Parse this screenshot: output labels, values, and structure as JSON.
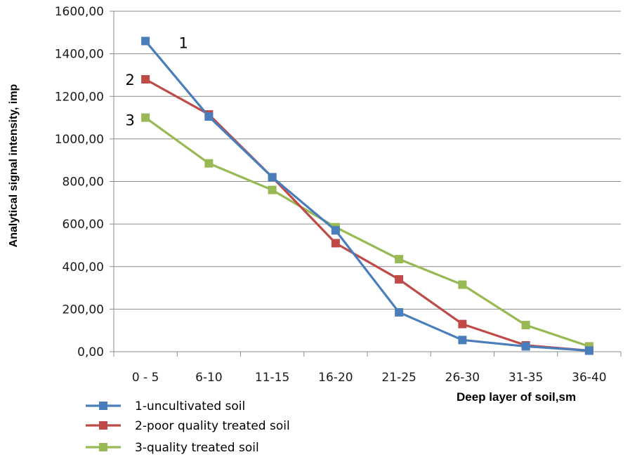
{
  "chart_data": {
    "type": "line",
    "title": "",
    "xlabel": "Deep layer of soil,sm",
    "ylabel": "Analytical signal intensity, imp",
    "categories": [
      "0 - 5",
      "6-10",
      "11-15",
      "16-20",
      "21-25",
      "26-30",
      "31-35",
      "36-40"
    ],
    "ylim": [
      0,
      1600
    ],
    "yticks": [
      "0,00",
      "200,00",
      "400,00",
      "600,00",
      "800,00",
      "1000,00",
      "1200,00",
      "1400,00",
      "1600,00"
    ],
    "grid": true,
    "legend_position": "bottom-left",
    "series": [
      {
        "name": "1-uncultivated soil",
        "color": "#4a7ebb",
        "label": "1",
        "values": [
          1460,
          1105,
          820,
          570,
          185,
          55,
          25,
          5
        ]
      },
      {
        "name": "2-poor quality treated soil",
        "color": "#be4b48",
        "label": "2",
        "values": [
          1280,
          1115,
          820,
          510,
          340,
          130,
          30,
          5
        ]
      },
      {
        "name": "3-quality treated soil",
        "color": "#98b954",
        "label": "3",
        "values": [
          1100,
          885,
          760,
          585,
          435,
          315,
          125,
          25
        ]
      }
    ]
  }
}
